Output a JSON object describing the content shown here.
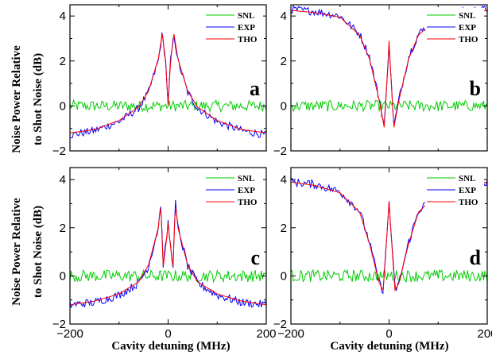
{
  "figure": {
    "ylabel_line1": "Noise Power Relative",
    "ylabel_line2": "to Shot Noise (dB)",
    "xlabel_left": "Cavity detuning   (MHz)",
    "xlabel_right": "Cavity detuning   (MHz)"
  },
  "chart_data": [
    {
      "panel": "a",
      "type": "line",
      "xlim": [
        -200,
        200
      ],
      "ylim": [
        -2,
        4.5
      ],
      "x_ticks": [
        -200,
        0,
        200
      ],
      "y_ticks": [
        -2,
        0,
        2,
        4
      ],
      "grid": false,
      "legend_position": "top-right",
      "series": [
        {
          "name": "SNL",
          "color": "#00cc00",
          "x": [
            -200,
            -100,
            -50,
            0,
            50,
            100,
            200
          ],
          "y": [
            0.0,
            0.0,
            0.0,
            0.0,
            0.0,
            0.0,
            0.0
          ]
        },
        {
          "name": "EXP",
          "color": "#0000ff",
          "x": [
            -200,
            -150,
            -100,
            -60,
            -40,
            -20,
            -12,
            -5,
            0,
            5,
            12,
            20,
            40,
            60,
            100,
            150,
            200
          ],
          "y": [
            -1.3,
            -1.1,
            -0.7,
            -0.1,
            0.6,
            2.0,
            3.2,
            2.0,
            0.0,
            2.0,
            3.2,
            2.0,
            0.6,
            -0.1,
            -0.7,
            -1.1,
            -1.3
          ]
        },
        {
          "name": "THO",
          "color": "#ff0000",
          "x": [
            -200,
            -150,
            -100,
            -60,
            -40,
            -20,
            -12,
            -5,
            0,
            5,
            12,
            20,
            40,
            60,
            100,
            150,
            200
          ],
          "y": [
            -1.2,
            -1.05,
            -0.65,
            -0.05,
            0.65,
            2.1,
            3.2,
            2.0,
            0.0,
            2.0,
            3.2,
            2.1,
            0.65,
            -0.05,
            -0.65,
            -1.05,
            -1.2
          ]
        }
      ]
    },
    {
      "panel": "b",
      "type": "line",
      "xlim": [
        -200,
        200
      ],
      "ylim": [
        -2,
        4.5
      ],
      "x_ticks": [
        -200,
        0,
        200
      ],
      "y_ticks": [
        -2,
        0,
        2,
        4
      ],
      "grid": false,
      "legend_position": "top-right",
      "series": [
        {
          "name": "SNL",
          "color": "#00cc00",
          "x": [
            -200,
            -100,
            0,
            100,
            200
          ],
          "y": [
            0.0,
            0.0,
            0.0,
            0.0,
            0.0
          ]
        },
        {
          "name": "EXP",
          "color": "#0000ff",
          "x": [
            -200,
            -150,
            -100,
            -60,
            -40,
            -20,
            -10,
            -5,
            0,
            5,
            10,
            20,
            40,
            60,
            100,
            150,
            200
          ],
          "y": [
            4.3,
            4.2,
            4.0,
            3.2,
            2.2,
            0.3,
            -0.9,
            0.8,
            2.9,
            0.8,
            -0.9,
            0.3,
            2.2,
            3.2,
            4.0,
            4.2,
            4.3
          ]
        },
        {
          "name": "THO",
          "color": "#ff0000",
          "x": [
            -200,
            -150,
            -100,
            -60,
            -40,
            -20,
            -10,
            -5,
            0,
            5,
            10,
            20,
            40,
            60,
            100,
            150,
            200
          ],
          "y": [
            4.25,
            4.15,
            3.95,
            3.15,
            2.1,
            0.25,
            -0.95,
            0.8,
            2.9,
            0.8,
            -0.95,
            0.25,
            2.1,
            3.15,
            3.95,
            4.15,
            4.25
          ]
        }
      ]
    },
    {
      "panel": "c",
      "type": "line",
      "xlim": [
        -200,
        200
      ],
      "ylim": [
        -2,
        4.5
      ],
      "x_ticks": [
        -200,
        0,
        200
      ],
      "y_ticks": [
        -2,
        0,
        2,
        4
      ],
      "grid": false,
      "legend_position": "top-right",
      "series": [
        {
          "name": "SNL",
          "color": "#00cc00",
          "x": [
            -200,
            -100,
            0,
            100,
            200
          ],
          "y": [
            0.0,
            0.0,
            0.0,
            0.0,
            0.0
          ]
        },
        {
          "name": "EXP",
          "color": "#0000ff",
          "x": [
            -200,
            -150,
            -100,
            -60,
            -40,
            -20,
            -15,
            -10,
            -5,
            0,
            5,
            10,
            15,
            20,
            40,
            60,
            100,
            150,
            200
          ],
          "y": [
            -1.2,
            -1.1,
            -0.8,
            -0.3,
            0.4,
            2.0,
            3.0,
            0.5,
            1.2,
            2.2,
            1.2,
            0.5,
            3.0,
            2.0,
            0.4,
            -0.3,
            -0.8,
            -1.1,
            -1.2
          ]
        },
        {
          "name": "THO",
          "color": "#ff0000",
          "x": [
            -200,
            -150,
            -100,
            -60,
            -40,
            -20,
            -15,
            -10,
            -5,
            0,
            5,
            10,
            15,
            20,
            40,
            60,
            100,
            150,
            200
          ],
          "y": [
            -1.2,
            -1.05,
            -0.75,
            -0.25,
            0.45,
            2.0,
            3.0,
            0.4,
            1.2,
            2.2,
            1.2,
            0.4,
            3.0,
            2.0,
            0.45,
            -0.25,
            -0.75,
            -1.05,
            -1.2
          ]
        }
      ]
    },
    {
      "panel": "d",
      "type": "line",
      "xlim": [
        -200,
        200
      ],
      "ylim": [
        -2,
        4.5
      ],
      "x_ticks": [
        -200,
        0,
        200
      ],
      "y_ticks": [
        -2,
        0,
        2,
        4
      ],
      "grid": false,
      "legend_position": "top-right",
      "series": [
        {
          "name": "SNL",
          "color": "#00cc00",
          "x": [
            -200,
            -100,
            0,
            100,
            200
          ],
          "y": [
            0.0,
            0.0,
            0.0,
            0.0,
            0.0
          ]
        },
        {
          "name": "EXP",
          "color": "#0000ff",
          "x": [
            -200,
            -150,
            -100,
            -60,
            -40,
            -20,
            -12,
            -5,
            0,
            5,
            12,
            20,
            40,
            60,
            100,
            150,
            200
          ],
          "y": [
            3.9,
            3.8,
            3.5,
            2.7,
            1.4,
            -0.3,
            -0.6,
            1.5,
            3.1,
            1.5,
            -0.6,
            -0.3,
            1.4,
            2.7,
            3.5,
            3.8,
            3.9
          ]
        },
        {
          "name": "THO",
          "color": "#ff0000",
          "x": [
            -200,
            -150,
            -100,
            -60,
            -40,
            -20,
            -12,
            -5,
            0,
            5,
            12,
            20,
            40,
            60,
            100,
            150,
            200
          ],
          "y": [
            3.9,
            3.75,
            3.45,
            2.65,
            1.35,
            -0.3,
            -0.6,
            1.5,
            3.1,
            1.5,
            -0.6,
            -0.3,
            1.35,
            2.65,
            3.45,
            3.75,
            3.9
          ]
        }
      ]
    }
  ]
}
